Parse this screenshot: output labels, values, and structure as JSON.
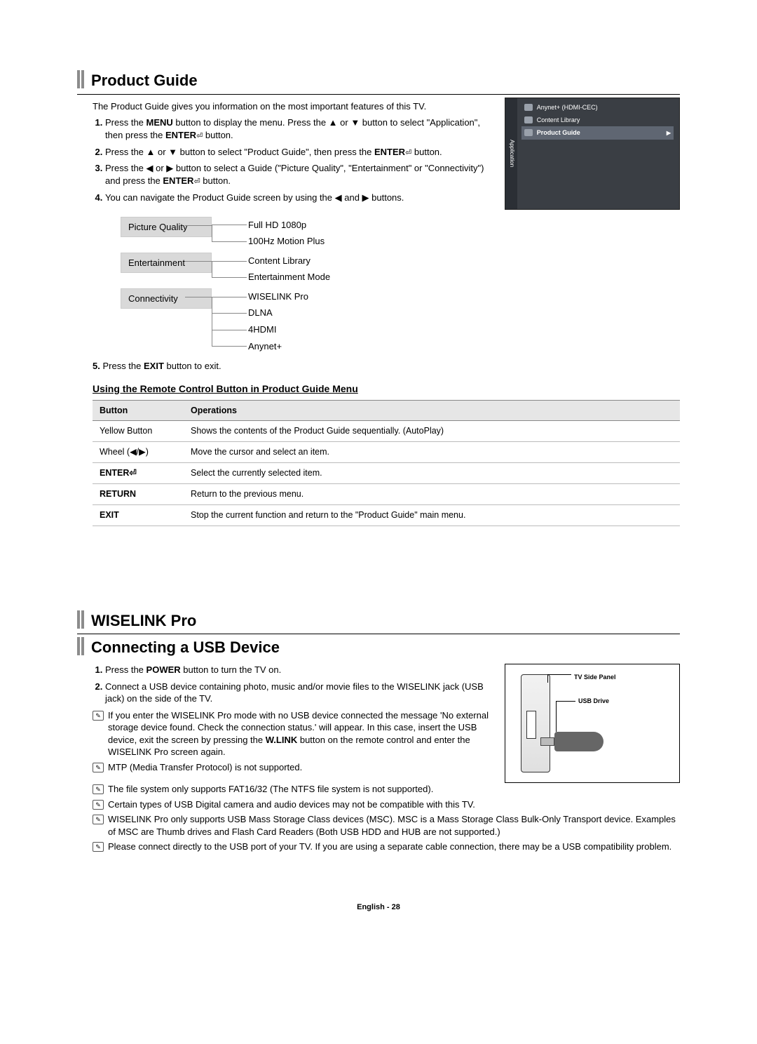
{
  "productGuide": {
    "title": "Product Guide",
    "intro": "The Product Guide gives you information on the most important features of this TV.",
    "steps": [
      "Press the MENU button to display the menu. Press the ▲ or ▼ button to select \"Application\", then press the ENTER⏎ button.",
      "Press the ▲ or ▼ button to select \"Product Guide\", then press the ENTER⏎ button.",
      "Press the ◀ or ▶ button to select a Guide (\"Picture Quality\", \"Entertainment\" or \"Connectivity\") and press the ENTER⏎ button.",
      "You can navigate the Product Guide screen by using the ◀ and ▶ buttons."
    ],
    "tree": [
      {
        "cat": "Picture Quality",
        "items": [
          "Full HD 1080p",
          "100Hz Motion Plus"
        ]
      },
      {
        "cat": "Entertainment",
        "items": [
          "Content Library",
          "Entertainment Mode"
        ]
      },
      {
        "cat": "Connectivity",
        "items": [
          "WISELINK Pro",
          "DLNA",
          "4HDMI",
          "Anynet+"
        ]
      }
    ],
    "step5_prefix": "5.",
    "step5": "Press the EXIT button to exit.",
    "subhead": "Using the Remote Control Button in Product Guide Menu",
    "table": {
      "headers": [
        "Button",
        "Operations"
      ],
      "rows": [
        {
          "btn": "Yellow Button",
          "op": "Shows the contents of the Product Guide sequentially. (AutoPlay)",
          "bold": false
        },
        {
          "btn": "Wheel (◀/▶)",
          "op": "Move the cursor and select an item.",
          "bold": false
        },
        {
          "btn": "ENTER⏎",
          "op": "Select the currently selected item.",
          "bold": true
        },
        {
          "btn": "RETURN",
          "op": "Return to the previous menu.",
          "bold": true
        },
        {
          "btn": "EXIT",
          "op": "Stop the current function and return to the \"Product Guide\" main menu.",
          "bold": true
        }
      ]
    },
    "tvMenu": {
      "tab": "Application",
      "rows": [
        {
          "label": "Anynet+ (HDMI-CEC)",
          "active": false
        },
        {
          "label": "Content Library",
          "active": false
        },
        {
          "label": "Product Guide",
          "active": true
        }
      ]
    }
  },
  "wiselink": {
    "sectionTitle": "WISELINK Pro",
    "title": "Connecting a USB Device",
    "steps": [
      "Press the POWER button to turn the TV on.",
      "Connect a USB device containing photo, music and/or movie files to the WISELINK jack (USB jack) on the side of the TV."
    ],
    "notes": [
      "If you enter the WISELINK Pro mode with no USB device connected the message 'No external storage device found. Check the connection status.' will appear. In this case, insert the USB device, exit the screen by pressing the W.LINK button on the remote control and enter the WISELINK Pro screen again.",
      "MTP (Media Transfer Protocol) is not supported.",
      "The file system only supports FAT16/32 (The NTFS file system is not supported).",
      "Certain types of USB Digital camera and audio devices may not be compatible with this TV.",
      "WISELINK Pro only supports USB Mass Storage Class devices (MSC). MSC is a Mass Storage Class Bulk-Only Transport device. Examples of MSC are Thumb drives and Flash Card Readers (Both USB HDD and HUB are not supported.)",
      "Please connect directly to the USB port of your TV. If you are using a separate cable connection, there may be a USB compatibility problem."
    ],
    "diagram": {
      "label1": "TV Side Panel",
      "label2": "USB Drive"
    }
  },
  "footer": "English - 28"
}
